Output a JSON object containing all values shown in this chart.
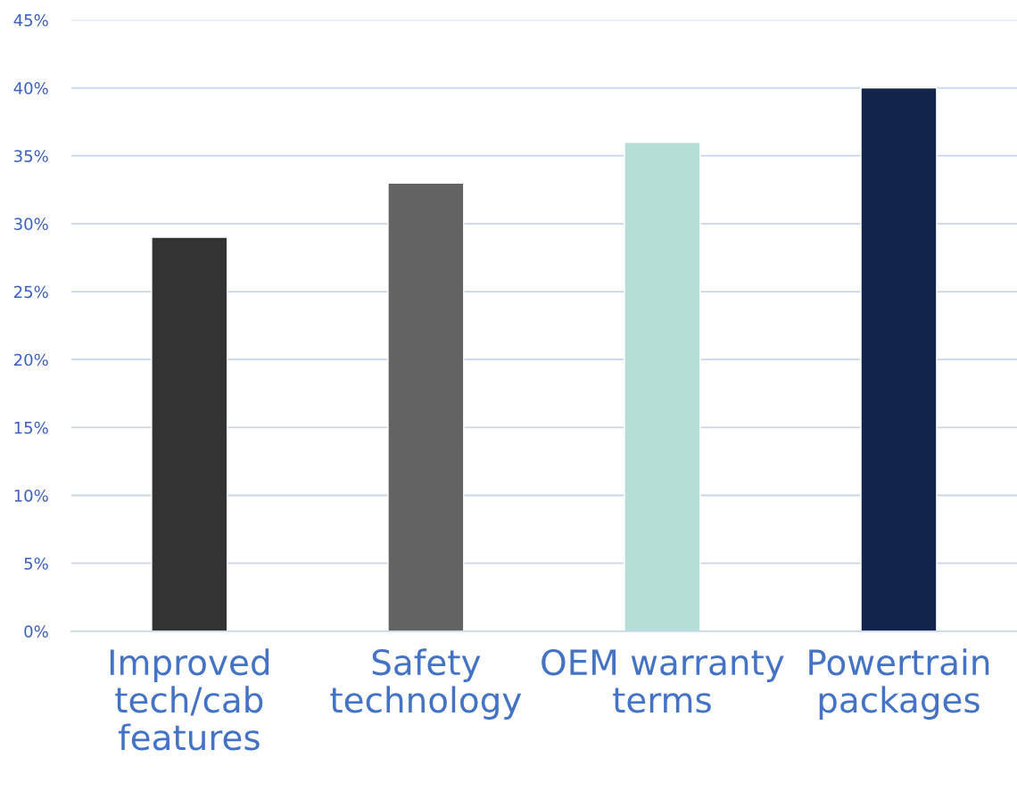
{
  "chart_data": {
    "type": "bar",
    "categories": [
      "Improved\ntech/cab\nfeatures",
      "Safety\ntechnology",
      "OEM warranty\nterms",
      "Powertrain\npackages"
    ],
    "values": [
      29,
      33,
      36,
      40
    ],
    "colors": [
      "#333333",
      "#636363",
      "#b5dfd4",
      "#13244a"
    ],
    "ylim": [
      0,
      45
    ],
    "yticks": [
      {
        "value": 0,
        "label": "0%"
      },
      {
        "value": 5,
        "label": "5%"
      },
      {
        "value": 10,
        "label": "10%"
      },
      {
        "value": 15,
        "label": "15%"
      },
      {
        "value": 20,
        "label": "20%"
      },
      {
        "value": 25,
        "label": "25%"
      },
      {
        "value": 30,
        "label": "30%"
      },
      {
        "value": 35,
        "label": "35%"
      },
      {
        "value": 40,
        "label": "40%"
      },
      {
        "value": 45,
        "label": "45%"
      }
    ],
    "grid": "y",
    "legend": false
  }
}
